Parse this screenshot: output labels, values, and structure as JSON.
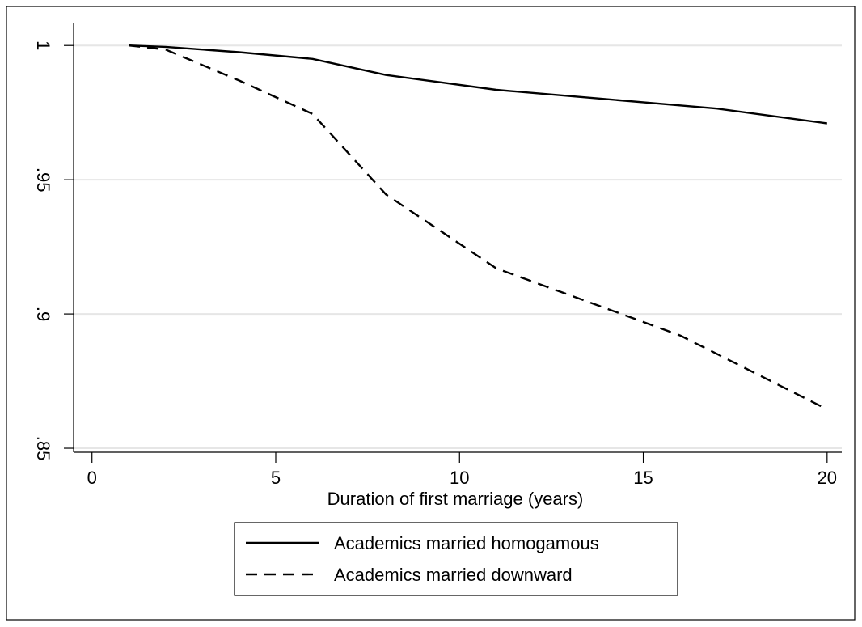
{
  "chart_data": {
    "type": "line",
    "xlabel": "Duration of first marriage (years)",
    "ylabel": "",
    "xlim": [
      -0.5,
      20.4
    ],
    "ylim": [
      0.8485,
      1.0085
    ],
    "xticks": [
      0,
      5,
      10,
      15,
      20
    ],
    "xtick_labels": [
      "0",
      "5",
      "10",
      "15",
      "20"
    ],
    "yticks": [
      0.85,
      0.9,
      0.95,
      1.0
    ],
    "ytick_labels": [
      ".85",
      ".9",
      ".95",
      "1"
    ],
    "grid": true,
    "legend_position": "bottom",
    "series": [
      {
        "name": "Academics married homogamous",
        "style": "solid",
        "color": "#000000",
        "x": [
          1,
          2,
          4,
          6,
          8,
          11,
          14,
          17,
          20
        ],
        "y": [
          1.0,
          0.9995,
          0.9975,
          0.995,
          0.989,
          0.9835,
          0.98,
          0.9765,
          0.971
        ]
      },
      {
        "name": "Academics married downward",
        "style": "dashed",
        "color": "#000000",
        "x": [
          1,
          2,
          4,
          6,
          8,
          11,
          14,
          16,
          20
        ],
        "y": [
          1.0,
          0.9985,
          0.987,
          0.9745,
          0.9445,
          0.917,
          0.902,
          0.892,
          0.8645
        ]
      }
    ]
  }
}
